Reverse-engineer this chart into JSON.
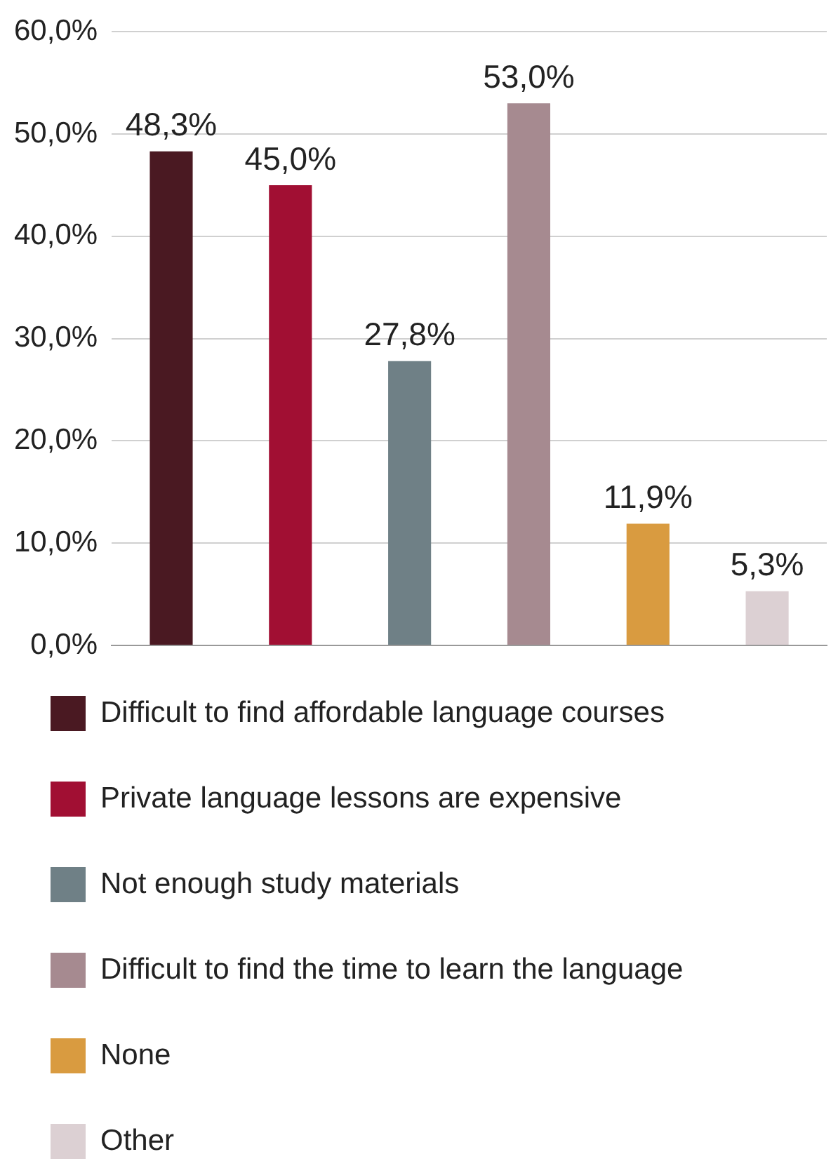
{
  "chart_data": {
    "type": "bar",
    "categories": [
      null
    ],
    "series": [
      {
        "name": "Difficult to find affordable language courses",
        "color": "#4a1922",
        "values": [
          48.3
        ],
        "value_labels": [
          "48,3%"
        ]
      },
      {
        "name": "Private language lessons are expensive",
        "color": "#a10f33",
        "values": [
          45.0
        ],
        "value_labels": [
          "45,0%"
        ]
      },
      {
        "name": "Not enough study materials",
        "color": "#6f8086",
        "values": [
          27.8
        ],
        "value_labels": [
          "27,8%"
        ]
      },
      {
        "name": "Difficult to find the time to learn the language",
        "color": "#a68a90",
        "values": [
          53.0
        ],
        "value_labels": [
          "53,0%"
        ]
      },
      {
        "name": "None",
        "color": "#d99b40",
        "values": [
          11.9
        ],
        "value_labels": [
          "11,9%"
        ]
      },
      {
        "name": "Other",
        "color": "#dcd0d3",
        "values": [
          5.3
        ],
        "value_labels": [
          "5,3%"
        ]
      }
    ],
    "ylim": [
      0,
      60
    ],
    "yticks": [
      {
        "value": 0,
        "label": "0,0%"
      },
      {
        "value": 10,
        "label": "10,0%"
      },
      {
        "value": 20,
        "label": "20,0%"
      },
      {
        "value": 30,
        "label": "30,0%"
      },
      {
        "value": 40,
        "label": "40,0%"
      },
      {
        "value": 50,
        "label": "50,0%"
      },
      {
        "value": 60,
        "label": "60,0%"
      }
    ],
    "grid": "y",
    "legend": "bottom",
    "tick_labels": "y"
  }
}
